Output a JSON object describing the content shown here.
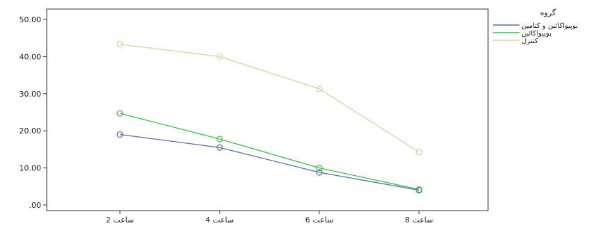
{
  "chart_data": {
    "type": "line",
    "categories": [
      "ساعت 2",
      "ساعت 4",
      "ساعت 6",
      "ساعت 8"
    ],
    "ylim": [
      0,
      50
    ],
    "yticks": [
      ".00",
      "10.00",
      "20.00",
      "30.00",
      "40.00",
      "50.00"
    ],
    "ytick_values": [
      0,
      10,
      20,
      30,
      40,
      50
    ],
    "grid": false,
    "marker": "circle",
    "legend": {
      "title": "گروه",
      "placement": "right"
    },
    "series": [
      {
        "name": "بوپیواکائین و کتامین",
        "color": "#5a6aa8",
        "values": [
          19.0,
          15.5,
          8.8,
          4.0
        ]
      },
      {
        "name": "بوپیواکائین",
        "color": "#3cbf4a",
        "values": [
          24.7,
          17.8,
          10.0,
          4.2
        ]
      },
      {
        "name": "کنترل",
        "color": "#d6d3a4",
        "values": [
          43.3,
          40.0,
          31.3,
          14.3
        ]
      }
    ]
  }
}
